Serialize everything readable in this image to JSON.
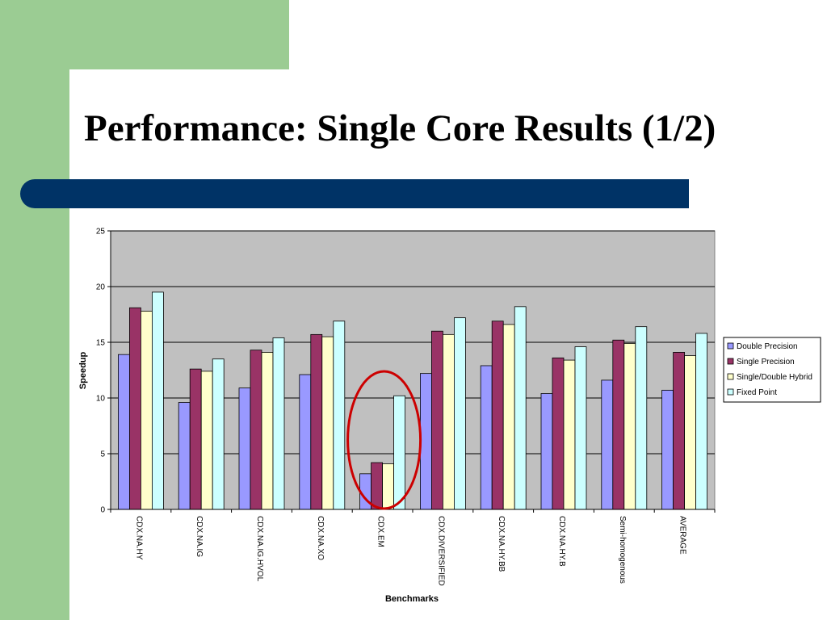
{
  "slide": {
    "title": "Performance: Single Core Results (1/2)"
  },
  "colors": {
    "background_green": "#9bcc93",
    "title_bar": "#003366",
    "plot_area": "#c0c0c0",
    "highlight_ellipse": "#cc0000"
  },
  "chart_data": {
    "type": "bar",
    "title": "",
    "xlabel": "Benchmarks",
    "ylabel": "Speedup",
    "ylim": [
      0,
      25
    ],
    "yticks": [
      0,
      5,
      10,
      15,
      20,
      25
    ],
    "grid": true,
    "legend_position": "right",
    "categories": [
      "CDX.NA.HY",
      "CDX.NA.IG",
      "CDX.NA.IG.HVOL",
      "CDX.NA.XO",
      "CDX.EM",
      "CDX.DIVERSIFIED",
      "CDX.NA.HY.BB",
      "CDX.NA.HY.B",
      "Semi-homogenous",
      "AVERAGE"
    ],
    "series": [
      {
        "name": "Double Precision",
        "color": "#9999ff",
        "values": [
          13.9,
          9.6,
          10.9,
          12.1,
          3.2,
          12.2,
          12.9,
          10.4,
          11.6,
          10.7
        ]
      },
      {
        "name": "Single Precision",
        "color": "#993366",
        "values": [
          18.1,
          12.6,
          14.3,
          15.7,
          4.2,
          16.0,
          16.9,
          13.6,
          15.2,
          14.1
        ]
      },
      {
        "name": "Single/Double Hybrid",
        "color": "#ffffcc",
        "values": [
          17.8,
          12.4,
          14.1,
          15.5,
          4.1,
          15.7,
          16.6,
          13.4,
          14.9,
          13.8
        ]
      },
      {
        "name": "Fixed Point",
        "color": "#ccffff",
        "values": [
          19.5,
          13.5,
          15.4,
          16.9,
          10.2,
          17.2,
          18.2,
          14.6,
          16.4,
          15.8
        ]
      }
    ],
    "highlighted_category": "CDX.EM"
  }
}
